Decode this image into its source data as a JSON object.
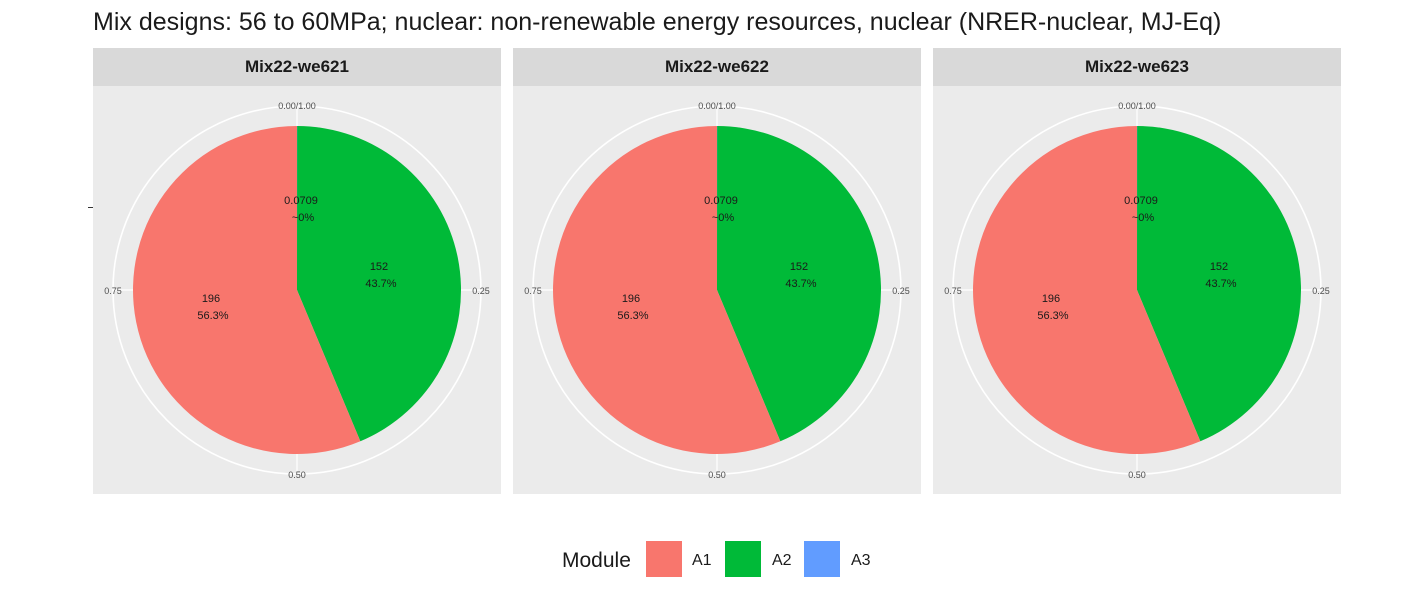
{
  "chart_data": {
    "type": "pie",
    "title": "Mix designs: 56 to 60MPa; nuclear: non-renewable energy resources, nuclear (NRER-nuclear, MJ-Eq)",
    "angle_ticks": [
      "0.00/1.00",
      "0.25",
      "0.50",
      "0.75"
    ],
    "legend": {
      "title": "Module",
      "placement": "bottom",
      "entries": [
        {
          "name": "A1",
          "color": "#F8766D"
        },
        {
          "name": "A2",
          "color": "#00BA38"
        },
        {
          "name": "A3",
          "color": "#619CFF"
        }
      ]
    },
    "panels": [
      {
        "title": "Mix22-we621",
        "slices": [
          {
            "module": "A1",
            "value": 196,
            "value_label": "196",
            "percent_label": "56.3%"
          },
          {
            "module": "A2",
            "value": 152,
            "value_label": "152",
            "percent_label": "43.7%"
          },
          {
            "module": "A3",
            "value": 0.0709,
            "value_label": "0.0709",
            "percent_label": "~0%"
          }
        ]
      },
      {
        "title": "Mix22-we622",
        "slices": [
          {
            "module": "A1",
            "value": 196,
            "value_label": "196",
            "percent_label": "56.3%"
          },
          {
            "module": "A2",
            "value": 152,
            "value_label": "152",
            "percent_label": "43.7%"
          },
          {
            "module": "A3",
            "value": 0.0709,
            "value_label": "0.0709",
            "percent_label": "~0%"
          }
        ]
      },
      {
        "title": "Mix22-we623",
        "slices": [
          {
            "module": "A1",
            "value": 196,
            "value_label": "196",
            "percent_label": "56.3%"
          },
          {
            "module": "A2",
            "value": 152,
            "value_label": "152",
            "percent_label": "43.7%"
          },
          {
            "module": "A3",
            "value": 0.0709,
            "value_label": "0.0709",
            "percent_label": "~0%"
          }
        ]
      }
    ]
  }
}
